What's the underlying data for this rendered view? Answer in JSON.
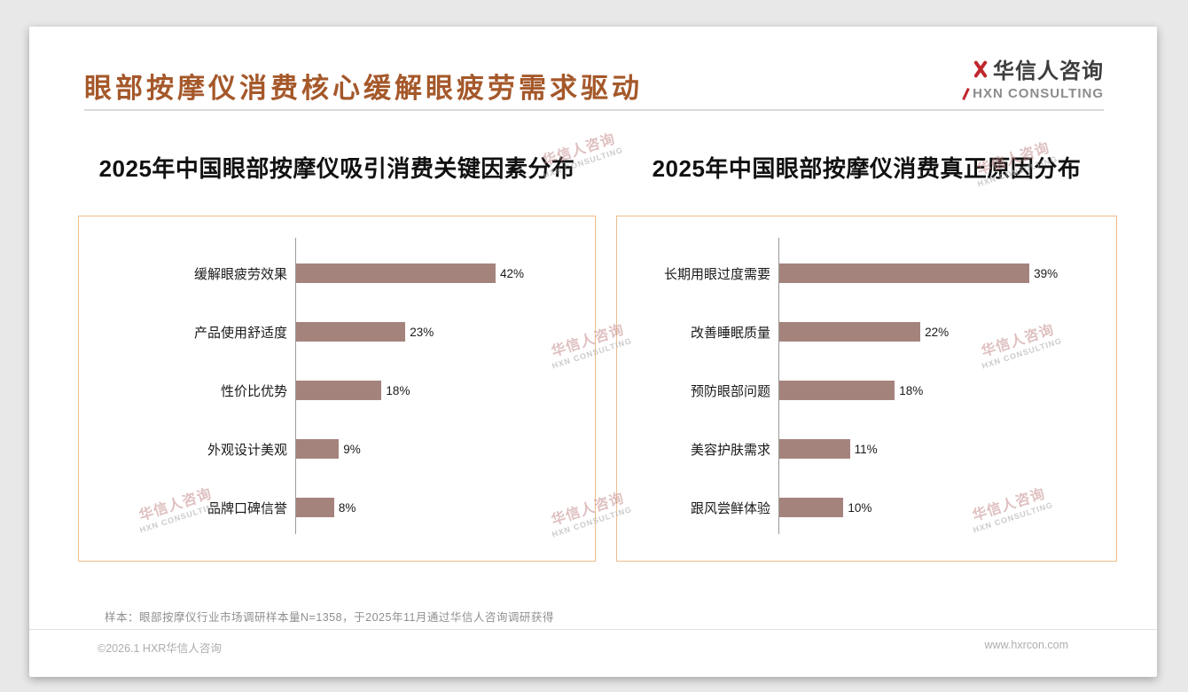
{
  "page": {
    "title": "眼部按摩仪消费核心缓解眼疲劳需求驱动",
    "sample_note": "样本：眼部按摩仪行业市场调研样本量N=1358，于2025年11月通过华信人咨询调研获得",
    "footer_left": "©2026.1 HXR华信人咨询",
    "footer_right": "www.hxrcon.com"
  },
  "logo": {
    "name": "华信人咨询",
    "subtitle": "HXN CONSULTING",
    "accent_color": "#c0272d"
  },
  "watermark": {
    "line1": "华信人咨询",
    "line2": "HXN CONSULTING"
  },
  "chart_data": [
    {
      "type": "bar",
      "orientation": "horizontal",
      "title": "2025年中国眼部按摩仪吸引消费关键因素分布",
      "categories": [
        "缓解眼疲劳效果",
        "产品使用舒适度",
        "性价比优势",
        "外观设计美观",
        "品牌口碑信誉"
      ],
      "values": [
        42,
        23,
        18,
        9,
        8
      ],
      "unit": "%",
      "xlim": [
        0,
        56
      ],
      "bar_color": "#a5837d",
      "grid": false,
      "legend": false,
      "value_labels": "right-of-bar"
    },
    {
      "type": "bar",
      "orientation": "horizontal",
      "title": "2025年中国眼部按摩仪消费真正原因分布",
      "categories": [
        "长期用眼过度需要",
        "改善睡眠质量",
        "预防眼部问题",
        "美容护肤需求",
        "跟风尝鲜体验"
      ],
      "values": [
        39,
        22,
        18,
        11,
        10
      ],
      "unit": "%",
      "xlim": [
        0,
        47
      ],
      "bar_color": "#a5837d",
      "grid": false,
      "legend": false,
      "value_labels": "right-of-bar"
    }
  ]
}
